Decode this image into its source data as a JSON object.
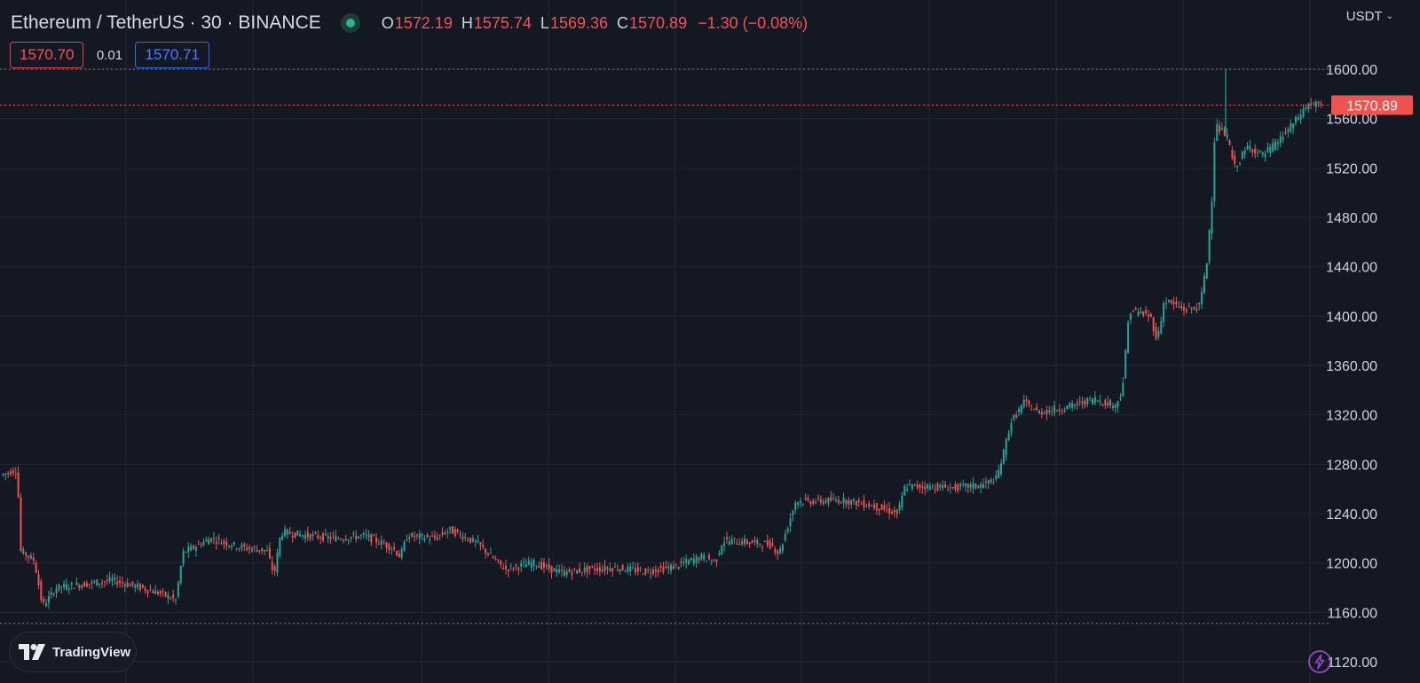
{
  "header": {
    "symbol": "Ethereum / TetherUS · 30 · BINANCE",
    "open_label": "O",
    "open": "1572.19",
    "high_label": "H",
    "high": "1575.74",
    "low_label": "L",
    "low": "1569.36",
    "close_label": "C",
    "close": "1570.89",
    "change": "−1.30 (−0.08%)"
  },
  "quote": {
    "sell": "1570.70",
    "spread": "0.01",
    "buy": "1570.71"
  },
  "currency": {
    "label": "USDT",
    "icon": "chevron-down-icon"
  },
  "branding": {
    "logo_text": "TradingView",
    "logo_icon": "tradingview-logo-icon"
  },
  "actions": {
    "quick_trade_icon": "lightning-icon"
  },
  "colors": {
    "up": "#26a69a",
    "down": "#ef5350",
    "background": "#141823",
    "grid": "#232733",
    "last_price": "#ef5350"
  },
  "chart_data": {
    "type": "candlestick",
    "y_axis_labels": [
      "1600.00",
      "1560.00",
      "1520.00",
      "1480.00",
      "1440.00",
      "1400.00",
      "1360.00",
      "1320.00",
      "1280.00",
      "1240.00",
      "1200.00",
      "1160.00",
      "1120.00"
    ],
    "ylim": [
      1110,
      1618
    ],
    "grid": true,
    "last_price": 1570.89,
    "last_price_label": "1570.89",
    "range_high": 1600.0,
    "range_low": 1151.0,
    "price_path": [
      [
        0,
        1271
      ],
      [
        0.012,
        1276
      ],
      [
        0.014,
        1210
      ],
      [
        0.024,
        1202
      ],
      [
        0.03,
        1165
      ],
      [
        0.04,
        1180
      ],
      [
        0.06,
        1183
      ],
      [
        0.08,
        1186
      ],
      [
        0.1,
        1180
      ],
      [
        0.115,
        1175
      ],
      [
        0.125,
        1170
      ],
      [
        0.13,
        1208
      ],
      [
        0.15,
        1220
      ],
      [
        0.17,
        1213
      ],
      [
        0.19,
        1210
      ],
      [
        0.195,
        1190
      ],
      [
        0.2,
        1225
      ],
      [
        0.22,
        1222
      ],
      [
        0.24,
        1220
      ],
      [
        0.26,
        1222
      ],
      [
        0.28,
        1212
      ],
      [
        0.285,
        1205
      ],
      [
        0.29,
        1222
      ],
      [
        0.31,
        1220
      ],
      [
        0.32,
        1227
      ],
      [
        0.34,
        1216
      ],
      [
        0.35,
        1205
      ],
      [
        0.36,
        1195
      ],
      [
        0.38,
        1200
      ],
      [
        0.4,
        1192
      ],
      [
        0.42,
        1195
      ],
      [
        0.44,
        1196
      ],
      [
        0.46,
        1193
      ],
      [
        0.48,
        1197
      ],
      [
        0.5,
        1205
      ],
      [
        0.51,
        1201
      ],
      [
        0.515,
        1218
      ],
      [
        0.53,
        1217
      ],
      [
        0.55,
        1215
      ],
      [
        0.555,
        1207
      ],
      [
        0.567,
        1250
      ],
      [
        0.58,
        1250
      ],
      [
        0.6,
        1251
      ],
      [
        0.62,
        1247
      ],
      [
        0.64,
        1240
      ],
      [
        0.645,
        1262
      ],
      [
        0.66,
        1262
      ],
      [
        0.68,
        1261
      ],
      [
        0.7,
        1263
      ],
      [
        0.71,
        1268
      ],
      [
        0.715,
        1287
      ],
      [
        0.72,
        1313
      ],
      [
        0.73,
        1330
      ],
      [
        0.74,
        1322
      ],
      [
        0.76,
        1326
      ],
      [
        0.78,
        1333
      ],
      [
        0.795,
        1327
      ],
      [
        0.8,
        1340
      ],
      [
        0.805,
        1405
      ],
      [
        0.82,
        1400
      ],
      [
        0.825,
        1380
      ],
      [
        0.83,
        1413
      ],
      [
        0.845,
        1405
      ],
      [
        0.855,
        1408
      ],
      [
        0.86,
        1440
      ],
      [
        0.865,
        1510
      ],
      [
        0.866,
        1555
      ],
      [
        0.875,
        1545
      ],
      [
        0.88,
        1520
      ],
      [
        0.89,
        1538
      ],
      [
        0.9,
        1530
      ],
      [
        0.91,
        1540
      ],
      [
        0.92,
        1553
      ],
      [
        0.93,
        1568
      ],
      [
        0.933,
        1572
      ],
      [
        0.94,
        1571
      ]
    ]
  }
}
